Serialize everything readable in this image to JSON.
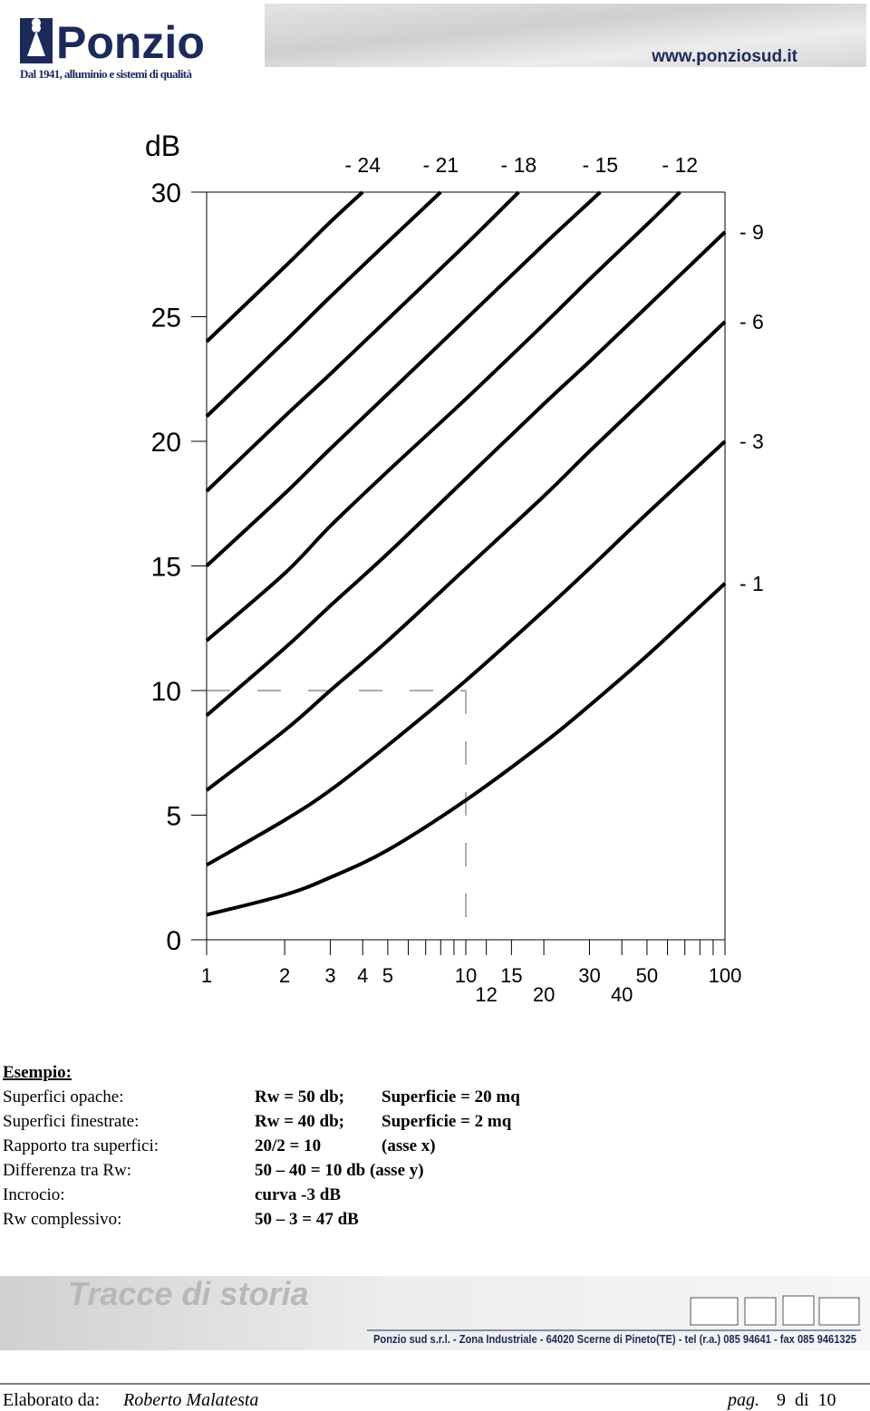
{
  "header": {
    "brand": "Ponzio",
    "tagline": "Dal 1941, alluminio e sistemi di qualità",
    "website": "www.ponziosud.it"
  },
  "chart_data": {
    "type": "line",
    "y_label": "dB",
    "xscale": "log",
    "xlim": [
      1,
      100
    ],
    "ylim": [
      0,
      30
    ],
    "xticks": [
      1,
      2,
      3,
      4,
      5,
      10,
      12,
      15,
      20,
      30,
      40,
      50,
      100
    ],
    "xminorticks": [
      6,
      7,
      8,
      9,
      60,
      70,
      80,
      90
    ],
    "yticks": [
      0,
      5,
      10,
      15,
      20,
      25,
      30
    ],
    "color": "#000000",
    "example_point": {
      "x": 10,
      "y": 10,
      "color": "#777777"
    },
    "series": [
      {
        "name": "- 24",
        "x": [
          1,
          2,
          3,
          4
        ],
        "values": [
          24,
          27,
          28.8,
          30
        ]
      },
      {
        "name": "- 21",
        "x": [
          1,
          2,
          3,
          5,
          8
        ],
        "values": [
          21,
          24,
          25.8,
          28,
          30
        ]
      },
      {
        "name": "- 18",
        "x": [
          1,
          2,
          3,
          5,
          10,
          16
        ],
        "values": [
          18,
          21,
          22.7,
          24.9,
          27.9,
          30
        ]
      },
      {
        "name": "- 15",
        "x": [
          1,
          2,
          3,
          5,
          10,
          20,
          30,
          33
        ],
        "values": [
          15,
          17.9,
          19.7,
          21.9,
          24.9,
          27.9,
          29.6,
          30
        ]
      },
      {
        "name": "- 12",
        "x": [
          1,
          2,
          3,
          5,
          10,
          20,
          30,
          50,
          67
        ],
        "values": [
          12,
          14.7,
          16.6,
          18.8,
          21.7,
          24.7,
          26.5,
          28.7,
          30
        ]
      },
      {
        "name": "- 9",
        "x": [
          1,
          2,
          3,
          5,
          10,
          20,
          30,
          50,
          100
        ],
        "values": [
          9,
          11.7,
          13.4,
          15.5,
          18.5,
          21.5,
          23.2,
          25.4,
          28.4
        ]
      },
      {
        "name": "- 6",
        "x": [
          1,
          2,
          3,
          5,
          10,
          20,
          30,
          50,
          100
        ],
        "values": [
          6,
          8.4,
          10,
          12,
          14.9,
          17.8,
          19.6,
          21.8,
          24.8
        ]
      },
      {
        "name": "- 3",
        "x": [
          1,
          2,
          3,
          5,
          10,
          20,
          30,
          50,
          100
        ],
        "values": [
          3,
          4.8,
          6,
          7.8,
          10.4,
          13.2,
          14.9,
          17.1,
          20
        ]
      },
      {
        "name": "- 1",
        "x": [
          1,
          2,
          3,
          5,
          10,
          20,
          30,
          50,
          100
        ],
        "values": [
          1,
          1.8,
          2.5,
          3.6,
          5.6,
          7.9,
          9.4,
          11.4,
          14.3
        ]
      }
    ]
  },
  "example": {
    "title": "Esempio:",
    "rows": [
      [
        "Superfici opache:",
        "Rw = 50 db;",
        "Superficie = 20 mq"
      ],
      [
        "Superfici finestrate:",
        "Rw = 40 db;",
        "Superficie = 2 mq"
      ],
      [
        "Rapporto tra superfici:",
        "20/2 = 10",
        "(asse x)"
      ],
      [
        "Differenza tra Rw:",
        "50 – 40 = 10 db (asse y)"
      ],
      [
        "Incrocio:",
        "curva -3 dB"
      ],
      [
        "Rw complessivo:",
        "50 – 3 = 47 dB"
      ]
    ]
  },
  "footer": {
    "banner": "Tracce di storia",
    "address": "Ponzio sud s.r.l. - Zona Industriale - 64020 Scerne di Pineto(TE) - tel (r.a.) 085 94641 - fax 085 9461325",
    "author_label": "Elaborato da:",
    "author": "Roberto Malatesta",
    "page_label": "pag.",
    "page": "9  di  10"
  }
}
